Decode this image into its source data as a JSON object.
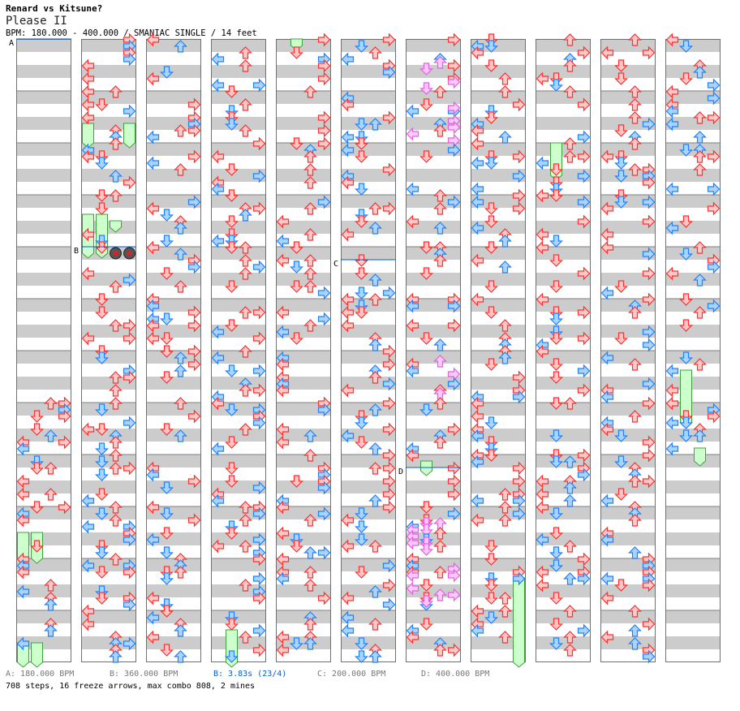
{
  "header": {
    "song_title": "Renard vs Kitsune?",
    "artist": "Please II",
    "meta": "BPM: 180.000 - 400.000 / SMANIAC SINGLE / 14 feet"
  },
  "footer": {
    "legend": [
      {
        "text": "A: 180.000 BPM",
        "color": "#777777"
      },
      {
        "text": "B: 360.000 BPM",
        "color": "#777777"
      },
      {
        "text": "B: 3.83s (23/4)",
        "color": "#0060d0"
      },
      {
        "text": "C: 200.000 BPM",
        "color": "#777777"
      },
      {
        "text": "D: 400.000 BPM",
        "color": "#777777"
      }
    ],
    "stats": "708 steps, 16 freeze arrows, max combo 808, 2 mines"
  },
  "chart_data": {
    "type": "step-chart",
    "columns": 11,
    "beats_per_column": 48,
    "lanes": [
      "left",
      "down",
      "up",
      "right"
    ],
    "colors": {
      "quarter": "#ff3030",
      "eighth": "#2080ff",
      "sixteenth": "#e060e0",
      "freeze": "#40a040",
      "stripe": "#cccccc",
      "bpm_line": "#0060d0"
    },
    "bpm_markers": [
      {
        "label": "A",
        "column": 0,
        "beat": 0
      },
      {
        "label": "B",
        "column": 1,
        "beat": 16
      },
      {
        "label": "C",
        "column": 5,
        "beat": 17
      },
      {
        "label": "D",
        "column": 6,
        "beat": 33
      }
    ],
    "freezes": [
      {
        "column": 0,
        "lane": 0,
        "start": 38,
        "end": 40
      },
      {
        "column": 0,
        "lane": 1,
        "start": 38,
        "end": 40
      },
      {
        "column": 0,
        "lane": 0,
        "start": 46.5,
        "end": 48
      },
      {
        "column": 0,
        "lane": 1,
        "start": 46.5,
        "end": 48
      },
      {
        "column": 1,
        "lane": 0,
        "start": 6.5,
        "end": 8
      },
      {
        "column": 1,
        "lane": 3,
        "start": 6.5,
        "end": 8
      },
      {
        "column": 1,
        "lane": 0,
        "start": 13.5,
        "end": 16.5
      },
      {
        "column": 1,
        "lane": 1,
        "start": 13.5,
        "end": 16.5
      },
      {
        "column": 3,
        "lane": 1,
        "start": 45.5,
        "end": 48
      },
      {
        "column": 4,
        "lane": 1,
        "start": 0,
        "end": 0.5
      },
      {
        "column": 6,
        "lane": 1,
        "start": 32.5,
        "end": 33.25
      },
      {
        "column": 7,
        "lane": 3,
        "start": 41.5,
        "end": 48
      },
      {
        "column": 8,
        "lane": 1,
        "start": 8,
        "end": 10.5
      },
      {
        "column": 10,
        "lane": 1,
        "start": 25.5,
        "end": 29.5
      },
      {
        "column": 10,
        "lane": 2,
        "start": 31.5,
        "end": 32.5
      },
      {
        "column": 1,
        "lane": 2,
        "start": 14,
        "end": 14.5
      }
    ],
    "mines": [
      {
        "column": 1,
        "lane": 2,
        "beat": 16.5
      },
      {
        "column": 1,
        "lane": 3,
        "beat": 16.5
      }
    ],
    "pattern_seed": 708
  }
}
